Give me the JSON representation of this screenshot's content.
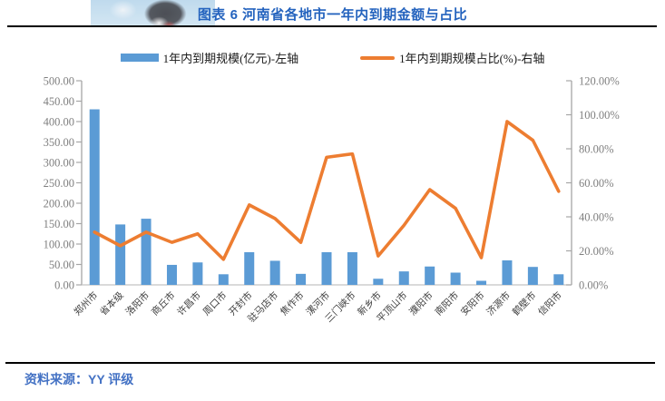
{
  "page": {
    "title": "图表 6 河南省各地市一年内到期金额与占比",
    "source_label": "资料来源：YY 评级"
  },
  "colors": {
    "title_blue": "#2463BE",
    "source_blue": "#4472C4",
    "bar_blue": "#5B9BD5",
    "line_orange": "#ED7D31",
    "axis_gray": "#a6a6a6",
    "tick_label_gray": "#7f7f7f",
    "category_label_gray": "#404040"
  },
  "legend": [
    {
      "label": "1年内到期规模(亿元)-左轴",
      "type": "bar",
      "color": "#5B9BD5"
    },
    {
      "label": "1年内到期规模占比(%)-右轴",
      "type": "line",
      "color": "#ED7D31"
    }
  ],
  "chart_data": {
    "type": "bar",
    "subtype": "bar-line-combo",
    "categories": [
      "郑州市",
      "省本级",
      "洛阳市",
      "商丘市",
      "许昌市",
      "周口市",
      "开封市",
      "驻马店市",
      "焦作市",
      "漯河市",
      "三门峡市",
      "新乡市",
      "平顶山市",
      "濮阳市",
      "南阳市",
      "安阳市",
      "济源市",
      "鹤壁市",
      "信阳市"
    ],
    "series": [
      {
        "name": "1年内到期规模(亿元)-左轴",
        "type": "bar",
        "axis": "left",
        "color": "#5B9BD5",
        "values": [
          430,
          148,
          162,
          49,
          55,
          26,
          80,
          59,
          27,
          80,
          80,
          15,
          33,
          45,
          30,
          10,
          60,
          44,
          26
        ]
      },
      {
        "name": "1年内到期规模占比(%)-右轴",
        "type": "line",
        "axis": "right",
        "color": "#ED7D31",
        "values": [
          31,
          23,
          31,
          25,
          30,
          15,
          47,
          39,
          25,
          75,
          77,
          17,
          35,
          56,
          45,
          16,
          96,
          85,
          55
        ]
      }
    ],
    "y_left": {
      "min": 0,
      "max": 500,
      "step": 50,
      "tick_format": "0.00"
    },
    "y_right": {
      "min": 0,
      "max": 120,
      "step": 20,
      "tick_format": "0.00%"
    },
    "grid": false,
    "legend_position": "top",
    "category_label_rotation": -45
  }
}
